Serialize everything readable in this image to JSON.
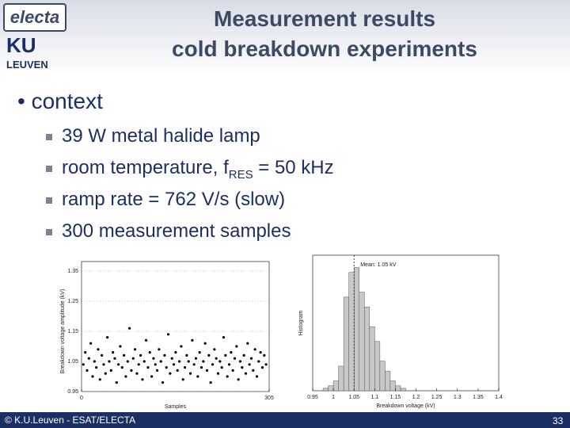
{
  "header": {
    "title_line1": "Measurement results",
    "title_line2": "cold breakdown experiments"
  },
  "logos": {
    "electa": "electa",
    "ku": "KU",
    "leuven": "LEUVEN"
  },
  "bullet": "context",
  "sub_bullets": [
    "39 W metal halide lamp",
    {
      "before": "room temperature, f",
      "subscript": "RES",
      "after": " = 50 kHz"
    },
    "ramp rate = 762 V/s (slow)",
    "300 measurement samples"
  ],
  "footer": {
    "copyright": "© K.U.Leuven - ESAT/ELECTA",
    "page": "33"
  },
  "chart_data": [
    {
      "type": "scatter",
      "x_label": "Samples",
      "y_label": "Breakdown voltage amplitude (kV)",
      "xlim": [
        0,
        305
      ],
      "xticks": [
        0,
        305
      ],
      "ylim": [
        0.95,
        1.35
      ],
      "yticks": [
        0.95,
        1.05,
        1.15,
        1.25,
        1.35
      ],
      "grid": true,
      "color": "#000000",
      "x": [
        3,
        6,
        9,
        12,
        15,
        18,
        21,
        24,
        27,
        30,
        33,
        36,
        39,
        42,
        45,
        48,
        51,
        54,
        57,
        60,
        63,
        66,
        69,
        72,
        75,
        78,
        81,
        84,
        87,
        90,
        93,
        96,
        99,
        102,
        105,
        108,
        111,
        114,
        117,
        120,
        123,
        126,
        129,
        132,
        135,
        138,
        141,
        144,
        147,
        150,
        153,
        156,
        159,
        162,
        165,
        168,
        171,
        174,
        177,
        180,
        183,
        186,
        189,
        192,
        195,
        198,
        201,
        204,
        207,
        210,
        213,
        216,
        219,
        222,
        225,
        228,
        231,
        234,
        237,
        240,
        243,
        246,
        249,
        252,
        255,
        258,
        261,
        264,
        267,
        270,
        273,
        276,
        279,
        282,
        285,
        288,
        291,
        294,
        297,
        300
      ],
      "values": [
        1.04,
        1.08,
        1.02,
        1.06,
        1.11,
        1.0,
        1.05,
        1.03,
        1.09,
        0.99,
        1.07,
        1.04,
        1.01,
        1.13,
        1.05,
        1.02,
        1.08,
        1.06,
        0.98,
        1.04,
        1.1,
        1.03,
        1.07,
        1.0,
        1.05,
        1.16,
        1.02,
        1.06,
        1.09,
        1.01,
        1.04,
        1.07,
        0.99,
        1.05,
        1.12,
        1.03,
        1.08,
        1.0,
        1.06,
        1.04,
        1.02,
        1.09,
        1.05,
        0.98,
        1.07,
        1.03,
        1.14,
        1.01,
        1.06,
        1.04,
        1.08,
        1.02,
        1.05,
        1.1,
        0.99,
        1.03,
        1.07,
        1.05,
        1.01,
        1.12,
        1.04,
        1.06,
        1.0,
        1.08,
        1.03,
        1.05,
        1.11,
        1.02,
        1.07,
        0.98,
        1.04,
        1.09,
        1.06,
        1.01,
        1.05,
        1.03,
        1.13,
        1.07,
        1.0,
        1.04,
        1.08,
        1.02,
        1.06,
        1.1,
        0.99,
        1.05,
        1.03,
        1.07,
        1.01,
        1.11,
        1.04,
        1.06,
        1.02,
        1.09,
        1.0,
        1.05,
        1.08,
        1.03,
        1.07,
        1.04
      ]
    },
    {
      "type": "histogram",
      "x_label": "Breakdown voltage (kV)",
      "y_label": "Histogram",
      "xlim": [
        0.95,
        1.4
      ],
      "xticks": [
        0.95,
        1,
        1.05,
        1.1,
        1.15,
        1.2,
        1.25,
        1.3,
        1.35,
        1.4
      ],
      "ylim": [
        0,
        55
      ],
      "color": "#c8c8c8",
      "bins": [
        0.975,
        0.9875,
        1.0,
        1.0125,
        1.025,
        1.0375,
        1.05,
        1.0625,
        1.075,
        1.0875,
        1.1,
        1.1125,
        1.125,
        1.1375,
        1.15,
        1.1625,
        1.175,
        1.1875,
        1.2
      ],
      "values": [
        1,
        2,
        4,
        10,
        38,
        48,
        50,
        40,
        34,
        26,
        20,
        12,
        8,
        4,
        2,
        1,
        0,
        0
      ],
      "annotation": {
        "text": "Mean: 1.05 kV",
        "x": 1.05
      }
    }
  ]
}
